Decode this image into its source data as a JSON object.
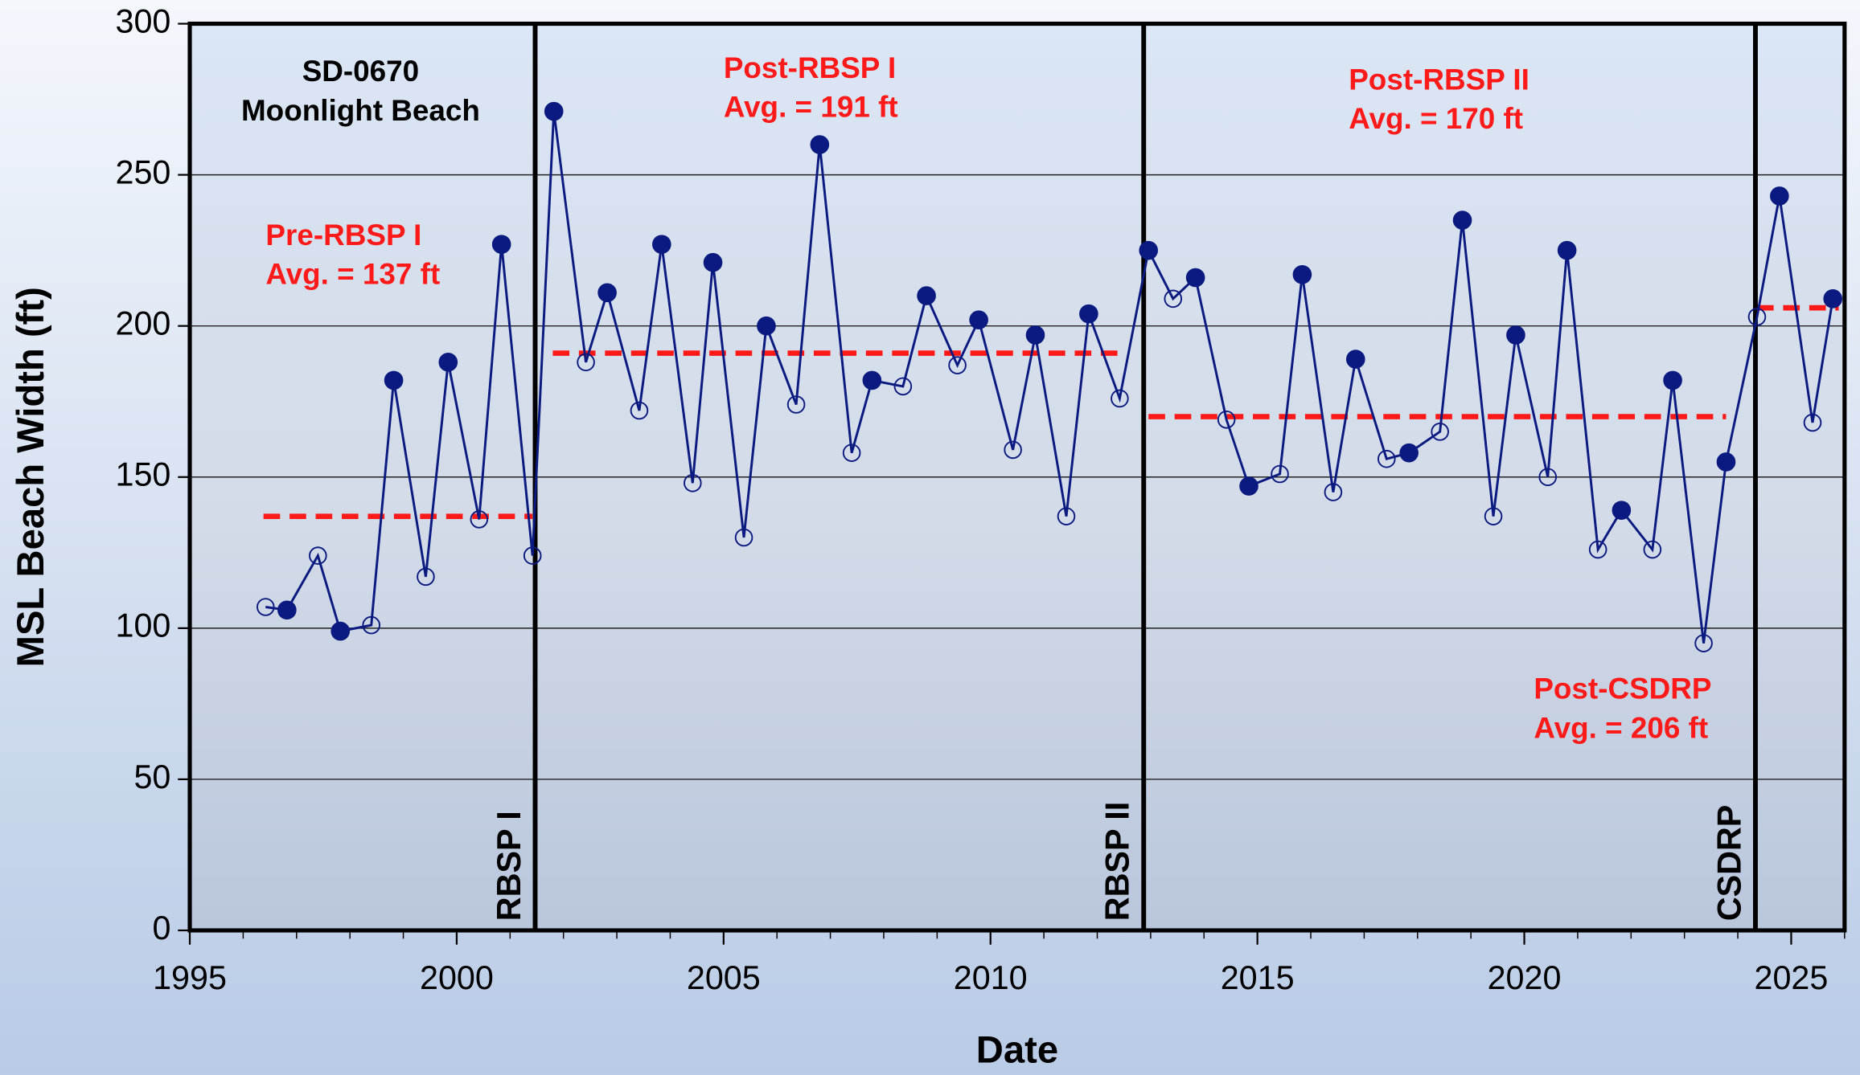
{
  "chart_data": {
    "type": "line",
    "title": [
      "SD-0670",
      "Moonlight Beach"
    ],
    "xlabel": "Date",
    "ylabel": "MSL Beach Width (ft)",
    "xlim": [
      1995,
      2026
    ],
    "ylim": [
      0,
      300
    ],
    "xticks": [
      1995,
      2000,
      2005,
      2010,
      2015,
      2020,
      2025
    ],
    "xminorticks": [
      1996,
      1997,
      1998,
      1999,
      2001,
      2002,
      2003,
      2004,
      2006,
      2007,
      2008,
      2009,
      2011,
      2012,
      2013,
      2014,
      2016,
      2017,
      2018,
      2019,
      2021,
      2022,
      2023,
      2024,
      2026
    ],
    "yticks": [
      0,
      50,
      100,
      150,
      200,
      250,
      300
    ],
    "grid": true,
    "color": "#0b1a80",
    "x": [
      1996.42,
      1996.82,
      1997.4,
      1997.82,
      1998.4,
      1998.82,
      1999.42,
      1999.84,
      2000.42,
      2000.84,
      2001.42,
      2001.82,
      2002.42,
      2002.82,
      2003.42,
      2003.84,
      2004.42,
      2004.8,
      2005.38,
      2005.8,
      2006.36,
      2006.8,
      2007.4,
      2007.78,
      2008.36,
      2008.8,
      2009.38,
      2009.78,
      2010.42,
      2010.84,
      2011.42,
      2011.84,
      2012.42,
      2012.96,
      2013.42,
      2013.84,
      2014.42,
      2014.84,
      2015.42,
      2015.84,
      2016.42,
      2016.84,
      2017.42,
      2017.84,
      2018.42,
      2018.84,
      2019.42,
      2019.84,
      2020.44,
      2020.8,
      2021.38,
      2021.82,
      2022.4,
      2022.78,
      2023.36,
      2023.78,
      2024.36,
      2024.78,
      2025.4,
      2025.78
    ],
    "values": [
      107,
      106,
      124,
      99,
      101,
      182,
      117,
      188,
      136,
      227,
      124,
      271,
      188,
      211,
      172,
      227,
      148,
      221,
      130,
      200,
      174,
      260,
      158,
      182,
      180,
      210,
      187,
      202,
      159,
      197,
      137,
      204,
      176,
      225,
      209,
      216,
      169,
      147,
      151,
      217,
      145,
      189,
      156,
      158,
      165,
      235,
      137,
      197,
      150,
      225,
      126,
      139,
      126,
      182,
      95,
      155,
      203,
      243,
      168,
      209
    ],
    "filled": [
      false,
      true,
      false,
      true,
      false,
      true,
      false,
      true,
      false,
      true,
      false,
      true,
      false,
      true,
      false,
      true,
      false,
      true,
      false,
      true,
      false,
      true,
      false,
      true,
      false,
      true,
      false,
      true,
      false,
      true,
      false,
      true,
      false,
      true,
      false,
      true,
      false,
      true,
      false,
      true,
      false,
      true,
      false,
      true,
      false,
      true,
      false,
      true,
      false,
      true,
      false,
      true,
      false,
      true,
      false,
      true,
      false,
      true,
      false,
      true
    ],
    "events": [
      {
        "label": "RBSP I",
        "x": 2001.47
      },
      {
        "label": "RBSP II",
        "x": 2012.87
      },
      {
        "label": "CSDRP",
        "x": 2024.33
      }
    ],
    "averages": [
      {
        "lines": [
          "Pre-RBSP I",
          "Avg. = 137  ft"
        ],
        "value": 137,
        "x": [
          1996.38,
          2001.42
        ],
        "color": "#ff1a1a"
      },
      {
        "lines": [
          "Post-RBSP I",
          "Avg. = 191  ft"
        ],
        "value": 191,
        "x": [
          2001.8,
          2012.51
        ],
        "color": "#ff1a1a"
      },
      {
        "lines": [
          "Post-RBSP II",
          "Avg. = 170 ft"
        ],
        "value": 170,
        "x": [
          2012.96,
          2023.78
        ],
        "color": "#ff1a1a"
      },
      {
        "lines": [
          "Post-CSDRP",
          "Avg. = 206 ft"
        ],
        "value": 206,
        "x": [
          2024.36,
          2025.89
        ],
        "color": "#ff1a1a"
      }
    ]
  }
}
